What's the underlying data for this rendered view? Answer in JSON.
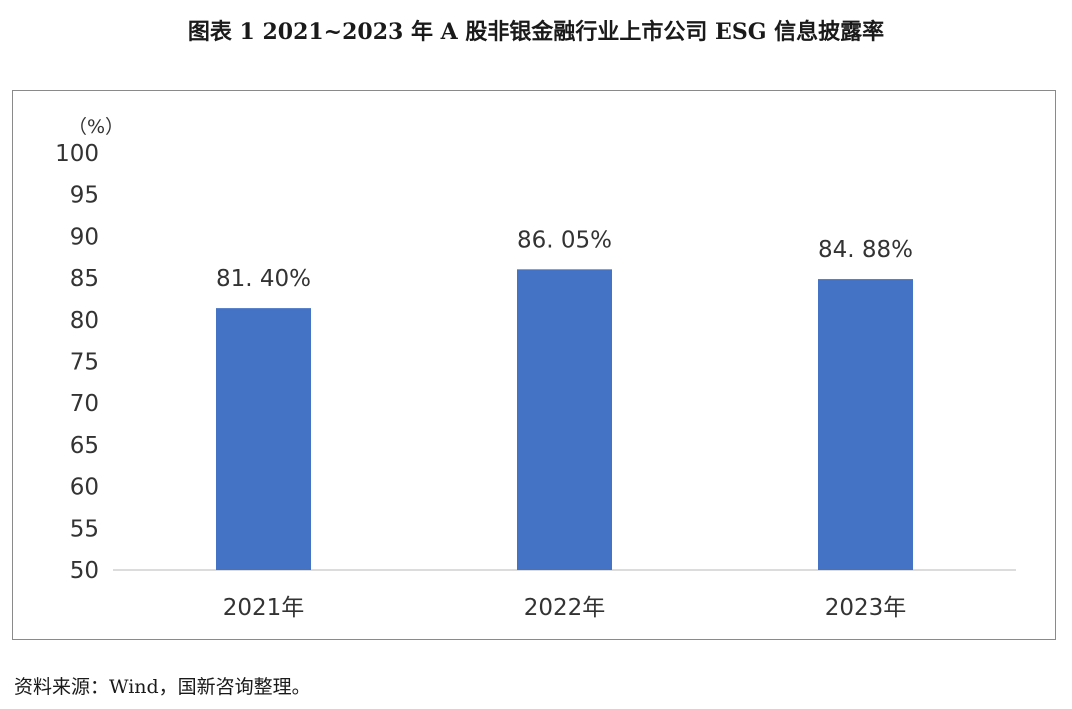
{
  "title": "图表 1  2021~2023 年 A 股非银金融行业上市公司 ESG 信息披露率",
  "source": "资料来源：Wind，国新咨询整理。",
  "chart_data": {
    "type": "bar",
    "title": "图表 1  2021~2023 年 A 股非银金融行业上市公司 ESG 信息披露率",
    "unit_label": "（%）",
    "categories": [
      "2021年",
      "2022年",
      "2023年"
    ],
    "values": [
      81.4,
      86.05,
      84.88
    ],
    "data_labels": [
      "81. 40%",
      "86. 05%",
      "84. 88%"
    ],
    "ylim": [
      50,
      100
    ],
    "yticks": [
      "100",
      "95",
      "90",
      "85",
      "80",
      "75",
      "70",
      "65",
      "60",
      "55",
      "50"
    ],
    "grid": false,
    "legend": "none",
    "bar_color": "#4472C4"
  }
}
